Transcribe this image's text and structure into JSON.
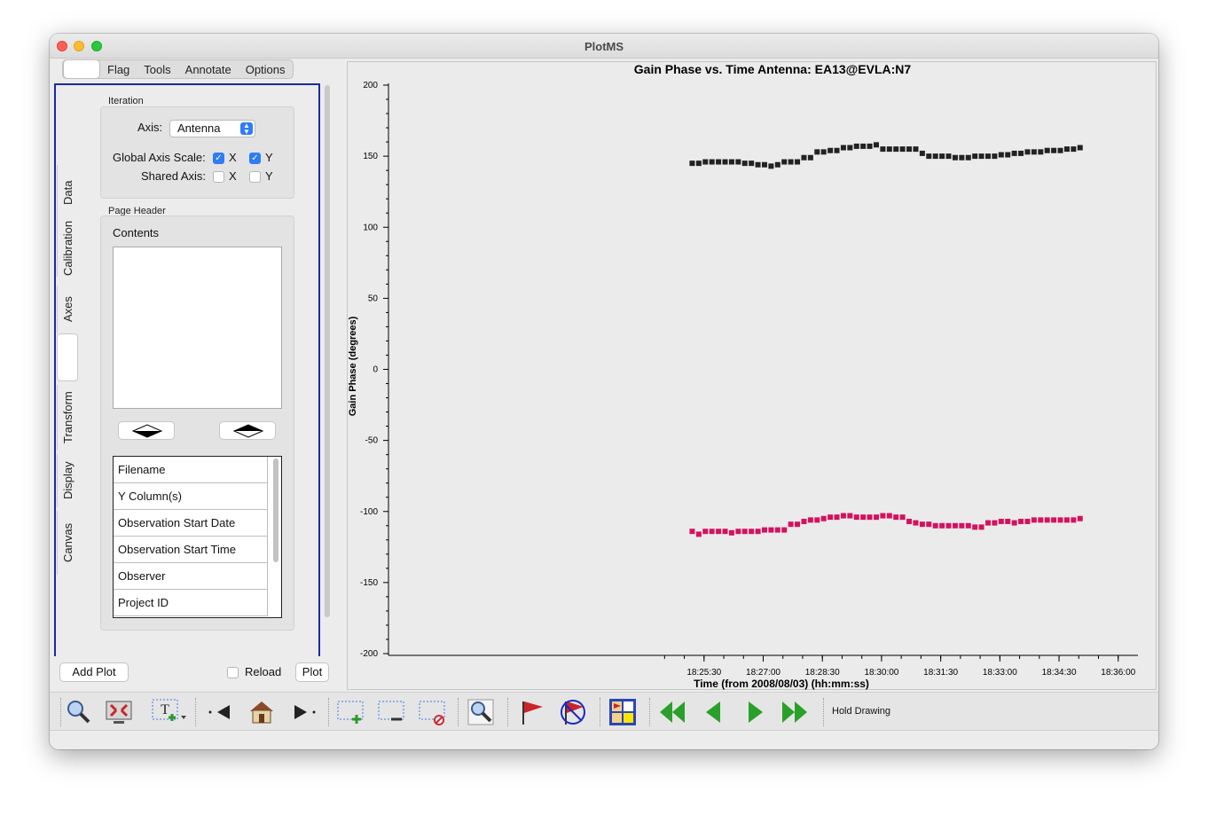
{
  "window": {
    "title": "PlotMS"
  },
  "tabs": [
    {
      "label": ""
    },
    {
      "label": "Flag"
    },
    {
      "label": "Tools"
    },
    {
      "label": "Annotate"
    },
    {
      "label": "Options"
    }
  ],
  "side_tabs": [
    {
      "label": "Data"
    },
    {
      "label": "Calibration"
    },
    {
      "label": "Axes"
    },
    {
      "label": ""
    },
    {
      "label": "Transform"
    },
    {
      "label": "Display"
    },
    {
      "label": "Canvas"
    }
  ],
  "iteration": {
    "group_label": "Iteration",
    "axis_label": "Axis:",
    "axis_value": "Antenna",
    "global_scale_label": "Global Axis Scale:",
    "global_x": {
      "label": "X",
      "checked": true
    },
    "global_y": {
      "label": "Y",
      "checked": true
    },
    "shared_label": "Shared Axis:",
    "shared_x": {
      "label": "X",
      "checked": false
    },
    "shared_y": {
      "label": "Y",
      "checked": false
    }
  },
  "page_header": {
    "group_label": "Page Header",
    "contents_label": "Contents",
    "contents_value": "",
    "items": [
      {
        "label": "Filename"
      },
      {
        "label": "Y Column(s)"
      },
      {
        "label": "Observation Start Date"
      },
      {
        "label": "Observation Start Time"
      },
      {
        "label": "Observer"
      },
      {
        "label": "Project ID"
      }
    ]
  },
  "bottom": {
    "add_plot": "Add Plot",
    "reload": "Reload",
    "reload_checked": false,
    "plot": "Plot"
  },
  "toolbar": {
    "hold_drawing": "Hold Drawing",
    "tools": [
      {
        "icon": "zoom-icon"
      },
      {
        "icon": "fullscreen-icon"
      },
      {
        "icon": "annotate-text-icon"
      },
      {
        "icon": "previous-icon"
      },
      {
        "icon": "home-icon"
      },
      {
        "icon": "next-icon"
      },
      {
        "icon": "add-region-icon"
      },
      {
        "icon": "subtract-region-icon"
      },
      {
        "icon": "clear-regions-icon"
      },
      {
        "icon": "inspect-icon"
      },
      {
        "icon": "flag-icon"
      },
      {
        "icon": "unflag-icon"
      },
      {
        "icon": "grid-layout-icon"
      },
      {
        "icon": "first-page-icon"
      },
      {
        "icon": "prev-page-icon"
      },
      {
        "icon": "next-page-icon"
      },
      {
        "icon": "last-page-icon"
      }
    ]
  },
  "colors": {
    "series1": "#222222",
    "series2": "#d3125f",
    "panel_border": "#1a29a8",
    "accent": "#2f7cf6"
  },
  "chart_data": {
    "type": "scatter",
    "title": "Gain Phase vs. Time Antenna: EA13@EVLA:N7",
    "xlabel": "Time (from 2008/08/03) (hh:mm:ss)",
    "ylabel": "Gain Phase (degrees)",
    "ylim": [
      -200,
      200
    ],
    "yticks": [
      200,
      150,
      100,
      50,
      0,
      -50,
      -100,
      -150,
      -200
    ],
    "xticks": [
      "18:25:30",
      "18:27:00",
      "18:28:30",
      "18:30:00",
      "18:31:30",
      "18:33:00",
      "18:34:30",
      "18:36:00"
    ],
    "xlim_seconds": [
      65850,
      66990
    ],
    "grid": false,
    "series": [
      {
        "color": "#222222",
        "x": [
          66312,
          66322,
          66332,
          66342,
          66352,
          66362,
          66372,
          66382,
          66392,
          66402,
          66412,
          66422,
          66432,
          66442,
          66452,
          66462,
          66472,
          66482,
          66492,
          66502,
          66512,
          66522,
          66532,
          66542,
          66552,
          66562,
          66572,
          66582,
          66592,
          66602,
          66612,
          66622,
          66632,
          66642,
          66652,
          66662,
          66672,
          66682,
          66692,
          66702,
          66712,
          66722,
          66732,
          66742,
          66752,
          66762,
          66772,
          66782,
          66792,
          66802,
          66812,
          66822,
          66832,
          66842,
          66852,
          66862,
          66872,
          66882,
          66892,
          66902
        ],
        "y": [
          145,
          145,
          146,
          146,
          146,
          146,
          146,
          146,
          145,
          145,
          144,
          144,
          143,
          144,
          146,
          146,
          146,
          149,
          149,
          153,
          153,
          154,
          154,
          156,
          156,
          157,
          157,
          157,
          158,
          155,
          155,
          155,
          155,
          155,
          155,
          152,
          150,
          150,
          150,
          150,
          149,
          149,
          149,
          150,
          150,
          150,
          150,
          151,
          151,
          152,
          152,
          153,
          153,
          153,
          154,
          154,
          154,
          155,
          155,
          156
        ]
      },
      {
        "color": "#d3125f",
        "x": [
          66312,
          66322,
          66332,
          66342,
          66352,
          66362,
          66372,
          66382,
          66392,
          66402,
          66412,
          66422,
          66432,
          66442,
          66452,
          66462,
          66472,
          66482,
          66492,
          66502,
          66512,
          66522,
          66532,
          66542,
          66552,
          66562,
          66572,
          66582,
          66592,
          66602,
          66612,
          66622,
          66632,
          66642,
          66652,
          66662,
          66672,
          66682,
          66692,
          66702,
          66712,
          66722,
          66732,
          66742,
          66752,
          66762,
          66772,
          66782,
          66792,
          66802,
          66812,
          66822,
          66832,
          66842,
          66852,
          66862,
          66872,
          66882,
          66892,
          66902
        ],
        "y": [
          -114,
          -116,
          -114,
          -114,
          -114,
          -114,
          -115,
          -114,
          -114,
          -114,
          -114,
          -113,
          -113,
          -113,
          -113,
          -109,
          -109,
          -107,
          -106,
          -106,
          -105,
          -104,
          -104,
          -103,
          -103,
          -104,
          -104,
          -104,
          -104,
          -103,
          -103,
          -104,
          -104,
          -107,
          -108,
          -109,
          -109,
          -110,
          -110,
          -110,
          -110,
          -110,
          -110,
          -111,
          -111,
          -108,
          -108,
          -107,
          -107,
          -108,
          -107,
          -107,
          -106,
          -106,
          -106,
          -106,
          -106,
          -106,
          -106,
          -105
        ]
      }
    ]
  }
}
